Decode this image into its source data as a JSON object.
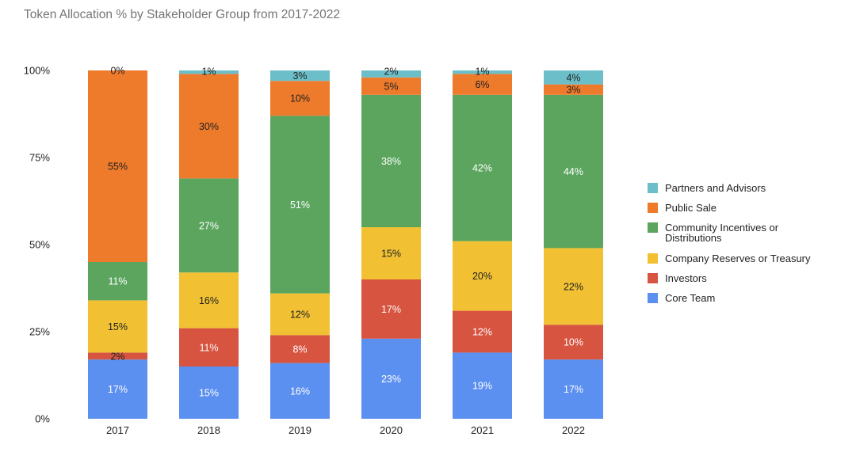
{
  "chart_data": {
    "type": "bar",
    "stacked": true,
    "title": "Token Allocation % by Stakeholder Group from 2017-2022",
    "categories": [
      "2017",
      "2018",
      "2019",
      "2020",
      "2021",
      "2022"
    ],
    "ylim": [
      0,
      100
    ],
    "y_ticks": [
      "0%",
      "25%",
      "50%",
      "75%",
      "100%"
    ],
    "grid": false,
    "legend_position": "right",
    "series": [
      {
        "name": "Core Team",
        "color": "#5B8FF0",
        "values": [
          17,
          15,
          16,
          23,
          19,
          17
        ],
        "labels": [
          "17%",
          "15%",
          "16%",
          "23%",
          "19%",
          "17%"
        ]
      },
      {
        "name": "Investors",
        "color": "#D75440",
        "values": [
          2,
          11,
          8,
          17,
          12,
          10
        ],
        "labels": [
          "2%",
          "11%",
          "8%",
          "17%",
          "12%",
          "10%"
        ]
      },
      {
        "name": "Company Reserves or Treasury",
        "color": "#F1C133",
        "values": [
          15,
          16,
          12,
          15,
          20,
          22
        ],
        "labels": [
          "15%",
          "16%",
          "12%",
          "15%",
          "20%",
          "22%"
        ]
      },
      {
        "name": "Community Incentives or Distributions",
        "color": "#5BA55E",
        "values": [
          11,
          27,
          51,
          38,
          42,
          44
        ],
        "labels": [
          "11%",
          "27%",
          "51%",
          "38%",
          "42%",
          "44%"
        ]
      },
      {
        "name": "Public Sale",
        "color": "#EE7A2B",
        "values": [
          55,
          30,
          10,
          5,
          6,
          3
        ],
        "labels": [
          "55%",
          "30%",
          "10%",
          "5%",
          "6%",
          "3%"
        ]
      },
      {
        "name": "Partners and Advisors",
        "color": "#6CBFC8",
        "values": [
          0,
          1,
          3,
          2,
          1,
          4
        ],
        "labels": [
          "0%",
          "1%",
          "3%",
          "2%",
          "1%",
          "4%"
        ]
      }
    ],
    "legend_order": [
      "Partners and Advisors",
      "Public Sale",
      "Community Incentives or Distributions",
      "Company Reserves or Treasury",
      "Investors",
      "Core Team"
    ]
  }
}
